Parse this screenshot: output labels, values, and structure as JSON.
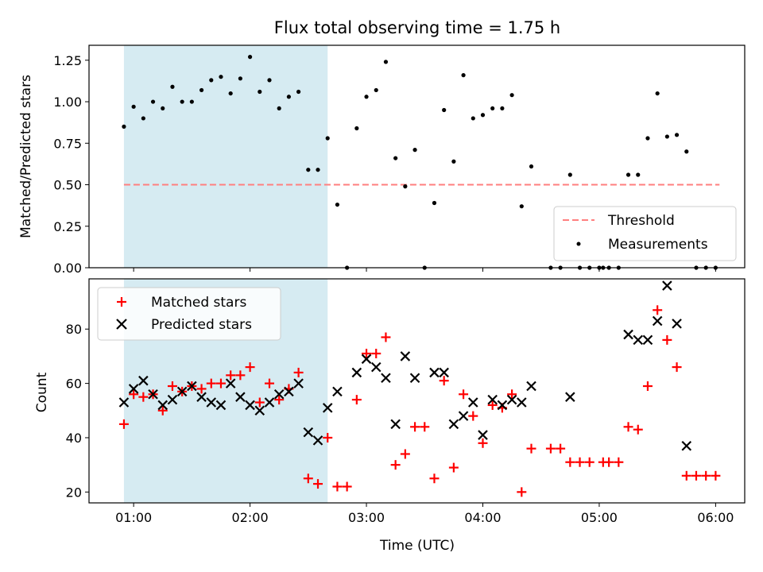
{
  "chart_data": [
    {
      "type": "scatter",
      "title": "Flux total observing time = 1.75 h",
      "xlabel": "",
      "ylabel": "Matched/Predicted stars",
      "ylim": [
        0,
        1.34
      ],
      "yticks": [
        "0.00",
        "0.25",
        "0.50",
        "0.75",
        "1.00",
        "1.25"
      ],
      "ytick_values": [
        0,
        0.25,
        0.5,
        0.75,
        1.0,
        1.25
      ],
      "shaded_span": {
        "x_start": "00:55",
        "x_end": "02:40",
        "color": "#add8e6"
      },
      "threshold": {
        "name": "Threshold",
        "y": 0.5,
        "x_start": "00:55",
        "x_end": "06:02",
        "color": "#ff7f7f"
      },
      "legend": {
        "placement": "lower-right",
        "entries": [
          "Threshold",
          "Measurements"
        ]
      },
      "series": [
        {
          "name": "Measurements",
          "marker": "dot",
          "color": "#000000",
          "points": [
            [
              "00:55",
              0.85
            ],
            [
              "01:00",
              0.97
            ],
            [
              "01:05",
              0.9
            ],
            [
              "01:10",
              1.0
            ],
            [
              "01:15",
              0.96
            ],
            [
              "01:20",
              1.09
            ],
            [
              "01:25",
              1.0
            ],
            [
              "01:30",
              1.0
            ],
            [
              "01:35",
              1.07
            ],
            [
              "01:40",
              1.13
            ],
            [
              "01:45",
              1.15
            ],
            [
              "01:50",
              1.05
            ],
            [
              "01:55",
              1.14
            ],
            [
              "02:00",
              1.27
            ],
            [
              "02:05",
              1.06
            ],
            [
              "02:10",
              1.13
            ],
            [
              "02:15",
              0.96
            ],
            [
              "02:20",
              1.03
            ],
            [
              "02:25",
              1.06
            ],
            [
              "02:30",
              0.59
            ],
            [
              "02:35",
              0.59
            ],
            [
              "02:40",
              0.78
            ],
            [
              "02:45",
              0.38
            ],
            [
              "02:50",
              0.0
            ],
            [
              "02:55",
              0.84
            ],
            [
              "03:00",
              1.03
            ],
            [
              "03:05",
              1.07
            ],
            [
              "03:10",
              1.24
            ],
            [
              "03:15",
              0.66
            ],
            [
              "03:20",
              0.49
            ],
            [
              "03:25",
              0.71
            ],
            [
              "03:30",
              0.0
            ],
            [
              "03:35",
              0.39
            ],
            [
              "03:40",
              0.95
            ],
            [
              "03:45",
              0.64
            ],
            [
              "03:50",
              1.16
            ],
            [
              "03:55",
              0.9
            ],
            [
              "04:00",
              0.92
            ],
            [
              "04:05",
              0.96
            ],
            [
              "04:10",
              0.96
            ],
            [
              "04:15",
              1.04
            ],
            [
              "04:20",
              0.37
            ],
            [
              "04:25",
              0.61
            ],
            [
              "04:35",
              0.0
            ],
            [
              "04:40",
              0.0
            ],
            [
              "04:45",
              0.56
            ],
            [
              "04:50",
              0.0
            ],
            [
              "04:55",
              0.0
            ],
            [
              "05:00",
              0.0
            ],
            [
              "05:02",
              0.0
            ],
            [
              "05:05",
              0.0
            ],
            [
              "05:10",
              0.0
            ],
            [
              "05:15",
              0.56
            ],
            [
              "05:20",
              0.56
            ],
            [
              "05:25",
              0.78
            ],
            [
              "05:30",
              1.05
            ],
            [
              "05:35",
              0.79
            ],
            [
              "05:40",
              0.8
            ],
            [
              "05:45",
              0.7
            ],
            [
              "05:50",
              0.0
            ],
            [
              "05:55",
              0.0
            ],
            [
              "06:00",
              0.0
            ]
          ]
        }
      ]
    },
    {
      "type": "scatter",
      "title": "",
      "xlabel": "Time (UTC)",
      "ylabel": "Count",
      "ylim": [
        16,
        98.5
      ],
      "yticks": [
        "20",
        "40",
        "60",
        "80"
      ],
      "ytick_values": [
        20,
        40,
        60,
        80
      ],
      "xlim": [
        "00:37",
        "06:15"
      ],
      "xticks": [
        "01:00",
        "02:00",
        "03:00",
        "04:00",
        "05:00",
        "06:00"
      ],
      "shaded_span": {
        "x_start": "00:55",
        "x_end": "02:40",
        "color": "#add8e6"
      },
      "legend": {
        "placement": "upper-left",
        "entries": [
          "Matched stars",
          "Predicted stars"
        ]
      },
      "series": [
        {
          "name": "Matched stars",
          "marker": "plus",
          "color": "#ff0000",
          "points": [
            [
              "00:55",
              45
            ],
            [
              "01:00",
              56
            ],
            [
              "01:05",
              55
            ],
            [
              "01:10",
              56
            ],
            [
              "01:15",
              50
            ],
            [
              "01:20",
              59
            ],
            [
              "01:25",
              57
            ],
            [
              "01:30",
              59
            ],
            [
              "01:35",
              58
            ],
            [
              "01:40",
              60
            ],
            [
              "01:45",
              60
            ],
            [
              "01:50",
              63
            ],
            [
              "01:55",
              63
            ],
            [
              "02:00",
              66
            ],
            [
              "02:05",
              53
            ],
            [
              "02:10",
              60
            ],
            [
              "02:15",
              54
            ],
            [
              "02:20",
              58
            ],
            [
              "02:25",
              64
            ],
            [
              "02:30",
              25
            ],
            [
              "02:35",
              23
            ],
            [
              "02:40",
              40
            ],
            [
              "02:45",
              22
            ],
            [
              "02:50",
              22
            ],
            [
              "02:55",
              54
            ],
            [
              "03:00",
              71
            ],
            [
              "03:05",
              71
            ],
            [
              "03:10",
              77
            ],
            [
              "03:15",
              30
            ],
            [
              "03:20",
              34
            ],
            [
              "03:25",
              44
            ],
            [
              "03:30",
              44
            ],
            [
              "03:35",
              25
            ],
            [
              "03:40",
              61
            ],
            [
              "03:45",
              29
            ],
            [
              "03:50",
              56
            ],
            [
              "03:55",
              48
            ],
            [
              "04:00",
              38
            ],
            [
              "04:05",
              52
            ],
            [
              "04:10",
              51
            ],
            [
              "04:15",
              56
            ],
            [
              "04:20",
              20
            ],
            [
              "04:25",
              36
            ],
            [
              "04:35",
              36
            ],
            [
              "04:40",
              36
            ],
            [
              "04:45",
              31
            ],
            [
              "04:50",
              31
            ],
            [
              "04:55",
              31
            ],
            [
              "05:02",
              31
            ],
            [
              "05:05",
              31
            ],
            [
              "05:10",
              31
            ],
            [
              "05:15",
              44
            ],
            [
              "05:20",
              43
            ],
            [
              "05:25",
              59
            ],
            [
              "05:30",
              87
            ],
            [
              "05:35",
              76
            ],
            [
              "05:40",
              66
            ],
            [
              "05:45",
              26
            ],
            [
              "05:50",
              26
            ],
            [
              "05:55",
              26
            ],
            [
              "06:00",
              26
            ]
          ]
        },
        {
          "name": "Predicted stars",
          "marker": "x",
          "color": "#000000",
          "points": [
            [
              "00:55",
              53
            ],
            [
              "01:00",
              58
            ],
            [
              "01:05",
              61
            ],
            [
              "01:10",
              56
            ],
            [
              "01:15",
              52
            ],
            [
              "01:20",
              54
            ],
            [
              "01:25",
              57
            ],
            [
              "01:30",
              59
            ],
            [
              "01:35",
              55
            ],
            [
              "01:40",
              53
            ],
            [
              "01:45",
              52
            ],
            [
              "01:50",
              60
            ],
            [
              "01:55",
              55
            ],
            [
              "02:00",
              52
            ],
            [
              "02:05",
              50
            ],
            [
              "02:10",
              53
            ],
            [
              "02:15",
              56
            ],
            [
              "02:20",
              57
            ],
            [
              "02:25",
              60
            ],
            [
              "02:30",
              42
            ],
            [
              "02:35",
              39
            ],
            [
              "02:40",
              51
            ],
            [
              "02:45",
              57
            ],
            [
              "02:55",
              64
            ],
            [
              "03:00",
              69
            ],
            [
              "03:05",
              66
            ],
            [
              "03:10",
              62
            ],
            [
              "03:15",
              45
            ],
            [
              "03:20",
              70
            ],
            [
              "03:25",
              62
            ],
            [
              "03:35",
              64
            ],
            [
              "03:40",
              64
            ],
            [
              "03:45",
              45
            ],
            [
              "03:50",
              48
            ],
            [
              "03:55",
              53
            ],
            [
              "04:00",
              41
            ],
            [
              "04:05",
              54
            ],
            [
              "04:10",
              52
            ],
            [
              "04:15",
              54
            ],
            [
              "04:20",
              53
            ],
            [
              "04:25",
              59
            ],
            [
              "04:45",
              55
            ],
            [
              "05:15",
              78
            ],
            [
              "05:20",
              76
            ],
            [
              "05:25",
              76
            ],
            [
              "05:30",
              83
            ],
            [
              "05:35",
              96
            ],
            [
              "05:40",
              82
            ],
            [
              "05:45",
              37
            ]
          ]
        }
      ]
    }
  ]
}
